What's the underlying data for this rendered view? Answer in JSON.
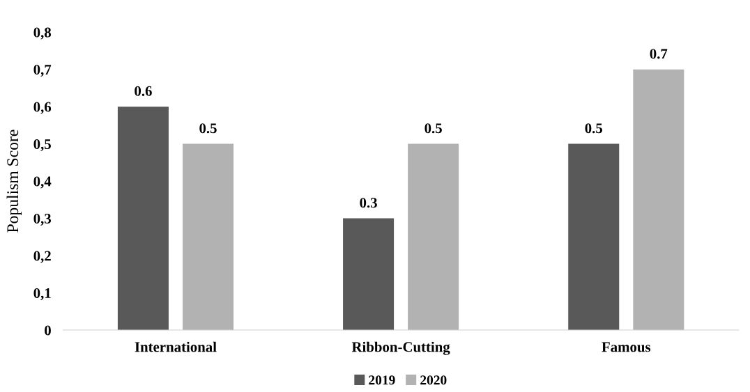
{
  "chart_data": {
    "type": "bar",
    "ylabel": "Populism Score",
    "categories": [
      "International",
      "Ribbon-Cutting",
      "Famous"
    ],
    "series": [
      {
        "name": "2019",
        "color": "#595959",
        "values": [
          0.6,
          0.3,
          0.5
        ]
      },
      {
        "name": "2020",
        "color": "#b2b2b2",
        "values": [
          0.5,
          0.5,
          0.7
        ]
      }
    ],
    "ylim": [
      0,
      0.8
    ],
    "yticks": [
      {
        "value": 0,
        "label": "0"
      },
      {
        "value": 0.1,
        "label": "0,1"
      },
      {
        "value": 0.2,
        "label": "0,2"
      },
      {
        "value": 0.3,
        "label": "0,3"
      },
      {
        "value": 0.4,
        "label": "0,4"
      },
      {
        "value": 0.5,
        "label": "0,5"
      },
      {
        "value": 0.6,
        "label": "0,6"
      },
      {
        "value": 0.7,
        "label": "0,7"
      },
      {
        "value": 0.8,
        "label": "0,8"
      }
    ],
    "data_labels": true,
    "grid": false,
    "legend": "bottom"
  }
}
